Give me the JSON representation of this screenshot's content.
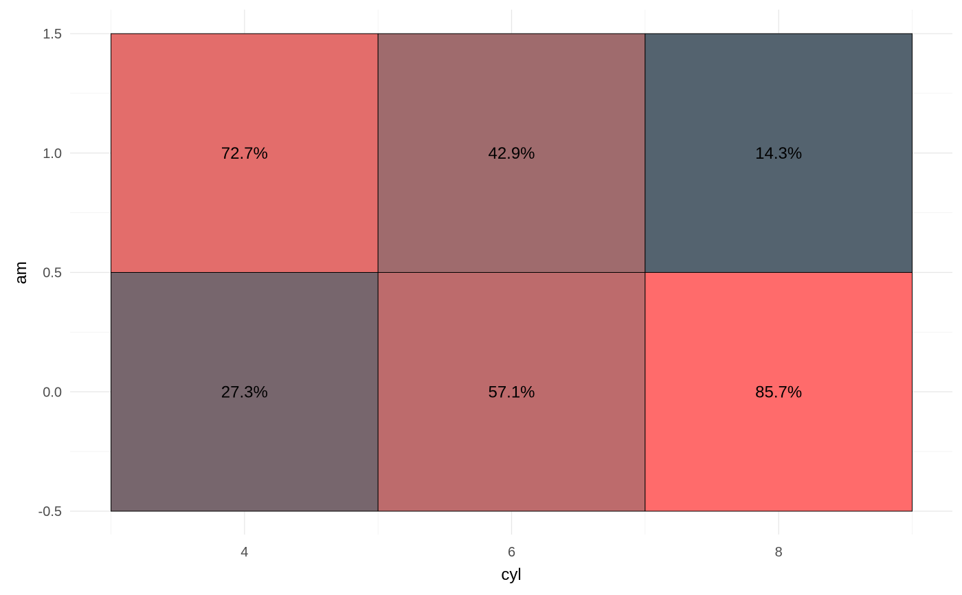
{
  "chart_data": {
    "type": "heatmap",
    "xlabel": "cyl",
    "ylabel": "am",
    "x_ticks": [
      "4",
      "6",
      "8"
    ],
    "y_ticks": [
      "-0.5",
      "0.0",
      "0.5",
      "1.0",
      "1.5"
    ],
    "x_values": [
      4,
      6,
      8
    ],
    "y_values": [
      0,
      1
    ],
    "xlim": [
      3,
      9
    ],
    "ylim": [
      -0.5,
      1.5
    ],
    "grid": true,
    "cells": [
      {
        "x": 4,
        "y": 0,
        "value": 27.3,
        "label": "27.3%",
        "color": "#77666d"
      },
      {
        "x": 4,
        "y": 1,
        "value": 72.7,
        "label": "72.7%",
        "color": "#e36d6b"
      },
      {
        "x": 6,
        "y": 0,
        "value": 57.1,
        "label": "57.1%",
        "color": "#bd6b6c"
      },
      {
        "x": 6,
        "y": 1,
        "value": 42.9,
        "label": "42.9%",
        "color": "#9f6b6d"
      },
      {
        "x": 8,
        "y": 0,
        "value": 85.7,
        "label": "85.7%",
        "color": "#ff6b6b"
      },
      {
        "x": 8,
        "y": 1,
        "value": 14.3,
        "label": "14.3%",
        "color": "#54636f"
      }
    ]
  }
}
